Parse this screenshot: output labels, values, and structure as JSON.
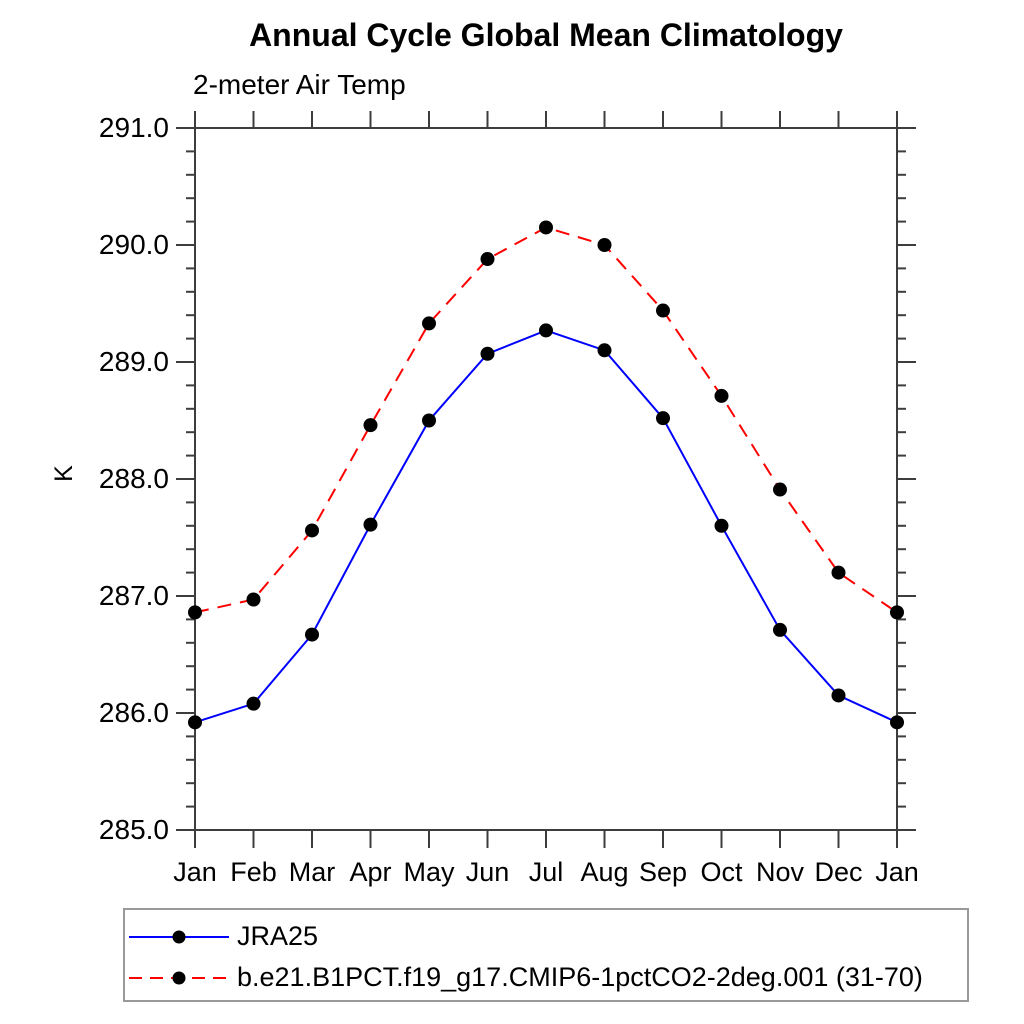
{
  "chart_data": {
    "type": "line",
    "title": "Annual Cycle Global Mean Climatology",
    "subtitle": "2-meter Air Temp",
    "ylabel": "K",
    "xlabel": "",
    "ylim": [
      285.0,
      291.0
    ],
    "ytick_interval": 1.0,
    "ytick_minor_interval": 0.2,
    "ytick_labels": [
      "285.0",
      "286.0",
      "287.0",
      "288.0",
      "289.0",
      "290.0",
      "291.0"
    ],
    "categories": [
      "Jan",
      "Feb",
      "Mar",
      "Apr",
      "May",
      "Jun",
      "Jul",
      "Aug",
      "Sep",
      "Oct",
      "Nov",
      "Dec",
      "Jan"
    ],
    "series": [
      {
        "name": "JRA25",
        "color": "#0000ff",
        "line_style": "solid",
        "marker": "filled-circle",
        "marker_color": "#000000",
        "values": [
          285.92,
          286.08,
          286.67,
          287.61,
          288.5,
          289.07,
          289.27,
          289.1,
          288.52,
          287.6,
          286.71,
          286.15,
          285.92
        ]
      },
      {
        "name": "b.e21.B1PCT.f19_g17.CMIP6-1pctCO2-2deg.001 (31-70)",
        "color": "#ff0000",
        "line_style": "dashed",
        "marker": "filled-circle",
        "marker_color": "#000000",
        "values": [
          286.86,
          286.97,
          287.56,
          288.46,
          289.33,
          289.88,
          290.15,
          290.0,
          289.44,
          288.71,
          287.91,
          287.2,
          286.86
        ]
      }
    ],
    "legend_position": "bottom-left",
    "grid": false,
    "colors": {
      "axis": "#3d3d3d",
      "text": "#000000",
      "background": "#ffffff"
    }
  }
}
